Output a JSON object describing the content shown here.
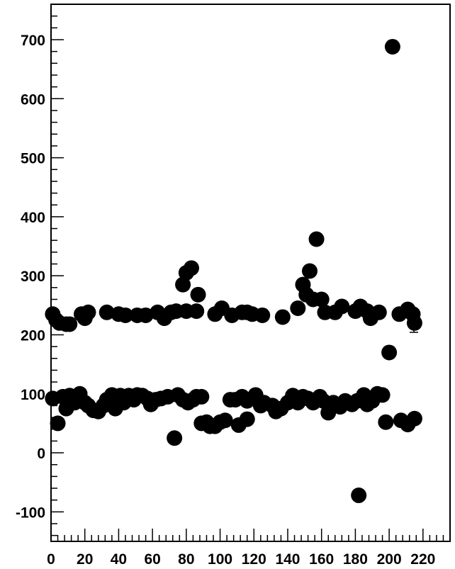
{
  "chart_data": {
    "type": "scatter",
    "title": "",
    "xlabel": "",
    "ylabel": "",
    "xlim": [
      0,
      236
    ],
    "ylim": [
      -150,
      760
    ],
    "x_ticks": [
      0,
      20,
      40,
      60,
      80,
      100,
      120,
      140,
      160,
      180,
      200,
      220
    ],
    "y_ticks": [
      -100,
      0,
      100,
      200,
      300,
      400,
      500,
      600,
      700
    ],
    "x_tick_labels": [
      "0",
      "20",
      "40",
      "60",
      "80",
      "100",
      "120",
      "140",
      "160",
      "180",
      "200",
      "220"
    ],
    "y_tick_labels": [
      "-100",
      "0",
      "100",
      "200",
      "300",
      "400",
      "500",
      "600",
      "700"
    ],
    "grid": false,
    "marker_color": "#000000",
    "series": [
      {
        "points": [
          [
            1,
            235
          ],
          [
            3,
            225
          ],
          [
            5,
            220
          ],
          [
            9,
            218
          ],
          [
            11,
            218
          ],
          [
            18,
            235
          ],
          [
            20,
            228
          ],
          [
            22,
            238
          ],
          [
            33,
            238
          ],
          [
            40,
            235
          ],
          [
            44,
            233
          ],
          [
            51,
            233
          ],
          [
            56,
            233
          ],
          [
            63,
            238
          ],
          [
            67,
            228
          ],
          [
            71,
            238
          ],
          [
            74,
            240
          ],
          [
            78,
            285
          ],
          [
            80,
            305
          ],
          [
            83,
            313
          ],
          [
            87,
            268
          ],
          [
            80,
            240
          ],
          [
            86,
            240
          ],
          [
            97,
            235
          ],
          [
            101,
            245
          ],
          [
            107,
            233
          ],
          [
            113,
            238
          ],
          [
            116,
            238
          ],
          [
            119,
            235
          ],
          [
            125,
            233
          ],
          [
            137,
            230
          ],
          [
            146,
            245
          ],
          [
            149,
            285
          ],
          [
            151,
            268
          ],
          [
            153,
            308
          ],
          [
            155,
            260
          ],
          [
            157,
            362
          ],
          [
            160,
            260
          ],
          [
            162,
            238
          ],
          [
            168,
            238
          ],
          [
            172,
            248
          ],
          [
            180,
            240
          ],
          [
            183,
            248
          ],
          [
            187,
            240
          ],
          [
            189,
            228
          ],
          [
            194,
            238
          ],
          [
            200,
            170
          ],
          [
            202,
            688
          ],
          [
            206,
            235
          ],
          [
            211,
            243
          ],
          [
            214,
            235
          ],
          [
            215,
            220
          ],
          [
            1,
            92
          ],
          [
            4,
            50
          ],
          [
            7,
            95
          ],
          [
            9,
            75
          ],
          [
            11,
            97
          ],
          [
            14,
            85
          ],
          [
            17,
            100
          ],
          [
            20,
            85
          ],
          [
            22,
            80
          ],
          [
            25,
            72
          ],
          [
            28,
            70
          ],
          [
            31,
            80
          ],
          [
            33,
            90
          ],
          [
            36,
            98
          ],
          [
            38,
            75
          ],
          [
            41,
            97
          ],
          [
            43,
            85
          ],
          [
            46,
            97
          ],
          [
            49,
            90
          ],
          [
            51,
            98
          ],
          [
            54,
            97
          ],
          [
            57,
            92
          ],
          [
            59,
            82
          ],
          [
            62,
            90
          ],
          [
            65,
            92
          ],
          [
            69,
            95
          ],
          [
            73,
            25
          ],
          [
            75,
            98
          ],
          [
            78,
            90
          ],
          [
            81,
            85
          ],
          [
            84,
            90
          ],
          [
            86,
            95
          ],
          [
            89,
            95
          ],
          [
            89,
            50
          ],
          [
            92,
            52
          ],
          [
            94,
            45
          ],
          [
            97,
            45
          ],
          [
            100,
            52
          ],
          [
            103,
            55
          ],
          [
            106,
            90
          ],
          [
            109,
            90
          ],
          [
            111,
            47
          ],
          [
            113,
            95
          ],
          [
            116,
            57
          ],
          [
            116,
            88
          ],
          [
            121,
            98
          ],
          [
            124,
            80
          ],
          [
            126,
            85
          ],
          [
            131,
            80
          ],
          [
            133,
            70
          ],
          [
            136,
            75
          ],
          [
            140,
            85
          ],
          [
            143,
            97
          ],
          [
            146,
            85
          ],
          [
            149,
            95
          ],
          [
            152,
            92
          ],
          [
            155,
            85
          ],
          [
            159,
            95
          ],
          [
            161,
            88
          ],
          [
            164,
            68
          ],
          [
            167,
            85
          ],
          [
            171,
            78
          ],
          [
            174,
            88
          ],
          [
            178,
            82
          ],
          [
            181,
            88
          ],
          [
            182,
            -72
          ],
          [
            185,
            98
          ],
          [
            187,
            82
          ],
          [
            190,
            88
          ],
          [
            193,
            100
          ],
          [
            196,
            98
          ],
          [
            198,
            52
          ],
          [
            207,
            55
          ],
          [
            211,
            48
          ],
          [
            215,
            58
          ]
        ]
      }
    ]
  }
}
